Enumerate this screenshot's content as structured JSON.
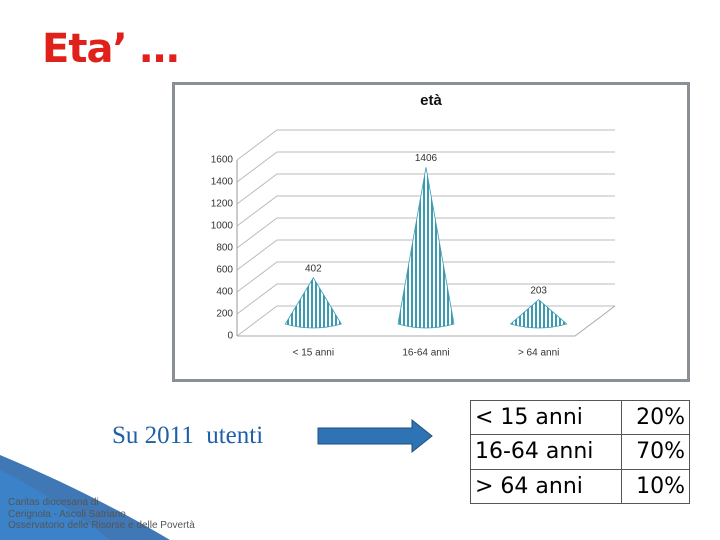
{
  "slide_title": "Eta’ …",
  "chart_data": {
    "type": "cone",
    "title": "età",
    "categories": [
      "< 15 anni",
      "16-64 anni",
      "> 64 anni"
    ],
    "values": [
      402,
      1406,
      203
    ],
    "color": "#3a9bb0",
    "ylim": [
      0,
      1600
    ],
    "yticks": [
      0,
      200,
      400,
      600,
      800,
      1000,
      1200,
      1400,
      1600
    ],
    "grid": true
  },
  "summary": "Su 2011  utenti",
  "table": {
    "rows": [
      [
        "< 15 anni",
        "20%"
      ],
      [
        "16-64 anni",
        "70%"
      ],
      [
        "> 64 anni",
        "10%"
      ]
    ]
  },
  "footer": {
    "lines": [
      "Caritas diocesana di",
      "Cerignola - Ascoli Satriano",
      "Osservatorio delle Risorse e delle Povertà"
    ]
  }
}
